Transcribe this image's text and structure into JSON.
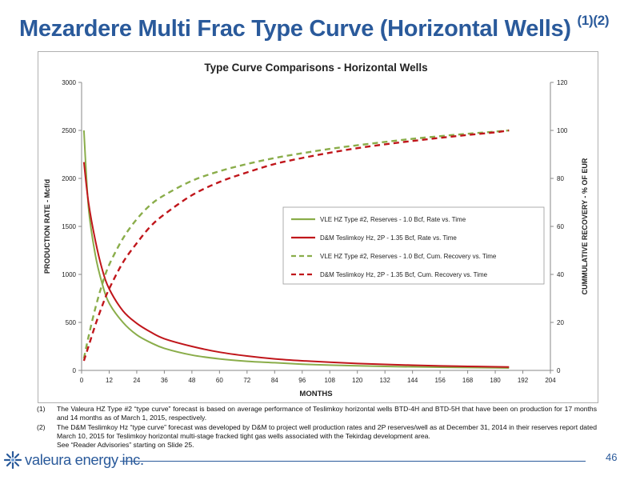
{
  "slide": {
    "title": "Mezardere Multi Frac Type Curve (Horizontal Wells)",
    "title_sup": "(1)(2)",
    "page_number": "46",
    "logo_text": "valeura energy inc.",
    "footnotes": [
      {
        "num": "(1)",
        "text": "The Valeura HZ Type #2 “type curve” forecast is based on average performance of Teslimkoy horizontal wells BTD-4H and BTD-5H that have been on production for 17 months and 14 months as of March 1, 2015, respectively."
      },
      {
        "num": "(2)",
        "text": "The D&M Teslimkoy Hz “type curve” forecast was developed by D&M to project well production rates and 2P reserves/well as at December 31, 2014 in their reserves report dated March 10, 2015 for Teslimkoy horizontal multi-stage fracked tight gas wells associated with the Tekirdag development area."
      }
    ],
    "footnote_extra": "See “Reader Advisories” starting on Slide 25."
  },
  "chart_data": {
    "type": "line",
    "title": "Type Curve Comparisons - Horizontal Wells",
    "xlabel": "MONTHS",
    "ylabel": "PRODUCTION RATE - Mcf/d",
    "y2label": "CUMMULATIVE RECOVERY - % OF EUR",
    "xlim": [
      0,
      204
    ],
    "ylim": [
      0,
      3000
    ],
    "y2lim": [
      0,
      120
    ],
    "xticks": [
      0,
      12,
      24,
      36,
      48,
      60,
      72,
      84,
      96,
      108,
      120,
      132,
      144,
      156,
      168,
      180,
      192,
      204
    ],
    "yticks": [
      0,
      500,
      1000,
      1500,
      2000,
      2500,
      3000
    ],
    "y2ticks": [
      0,
      20,
      40,
      60,
      80,
      100,
      120
    ],
    "grid": false,
    "legend_position": "center-right",
    "colors": {
      "vle": "#8aad4a",
      "dm": "#c0161b"
    },
    "series": [
      {
        "name": "VLE HZ Type #2, Reserves - 1.0 Bcf, Rate vs. Time",
        "axis": "left",
        "style": "solid",
        "color": "#8aad4a",
        "x": [
          1,
          3,
          6,
          9,
          12,
          18,
          24,
          30,
          36,
          48,
          60,
          72,
          84,
          96,
          108,
          120,
          132,
          144,
          156,
          168,
          180,
          186
        ],
        "y": [
          2500,
          1700,
          1200,
          900,
          700,
          500,
          370,
          290,
          230,
          160,
          120,
          95,
          80,
          65,
          55,
          48,
          42,
          37,
          33,
          30,
          27,
          25
        ]
      },
      {
        "name": "D&M Teslimkoy Hz, 2P - 1.35 Bcf, Rate vs. Time",
        "axis": "left",
        "style": "solid",
        "color": "#c0161b",
        "x": [
          1,
          3,
          6,
          9,
          12,
          18,
          24,
          30,
          36,
          48,
          60,
          72,
          84,
          96,
          108,
          120,
          132,
          144,
          156,
          168,
          180,
          186
        ],
        "y": [
          2170,
          1750,
          1350,
          1050,
          850,
          620,
          490,
          400,
          330,
          250,
          190,
          150,
          120,
          100,
          85,
          72,
          62,
          54,
          47,
          42,
          37,
          35
        ]
      },
      {
        "name": "VLE HZ Type #2, Reserves - 1.0 Bcf, Cum. Recovery vs. Time",
        "axis": "right",
        "style": "dashed",
        "color": "#8aad4a",
        "x": [
          1,
          3,
          6,
          9,
          12,
          18,
          24,
          30,
          36,
          48,
          60,
          72,
          84,
          96,
          108,
          120,
          132,
          144,
          156,
          168,
          180,
          186
        ],
        "y": [
          5,
          14,
          26,
          36,
          44,
          55,
          63,
          69,
          73,
          79,
          83,
          86,
          88.5,
          90.5,
          92.3,
          93.8,
          95.2,
          96.5,
          97.6,
          98.6,
          99.5,
          100
        ]
      },
      {
        "name": "D&M Teslimkoy Hz, 2P - 1.35 Bcf, Cum. Recovery vs. Time",
        "axis": "right",
        "style": "dashed",
        "color": "#c0161b",
        "x": [
          1,
          3,
          6,
          9,
          12,
          18,
          24,
          30,
          36,
          48,
          60,
          72,
          84,
          96,
          108,
          120,
          132,
          144,
          156,
          168,
          180,
          186
        ],
        "y": [
          4,
          10,
          19,
          27,
          34,
          45,
          53,
          60,
          65,
          73,
          78.5,
          82.5,
          86,
          88.5,
          90.7,
          92.6,
          94.2,
          95.6,
          96.9,
          98.1,
          99.2,
          100
        ]
      }
    ]
  }
}
